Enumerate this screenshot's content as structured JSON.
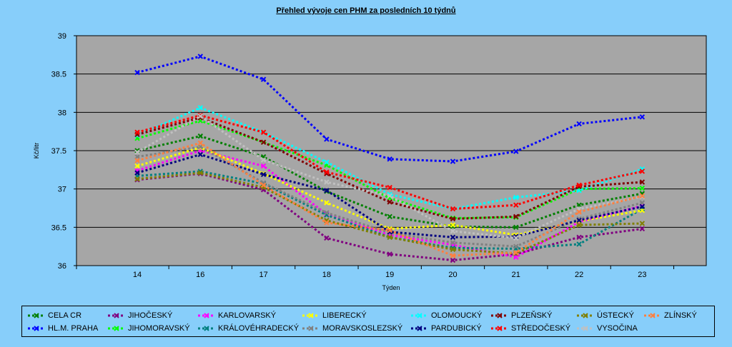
{
  "chart_data": {
    "type": "line",
    "title": "Přehled vývoje cen PHM za posledních 10 týdnů",
    "xlabel": "Týden",
    "ylabel": "Kč/litr",
    "categories": [
      "14",
      "16",
      "17",
      "18",
      "19",
      "20",
      "21",
      "22",
      "23"
    ],
    "ylim": [
      36,
      39
    ],
    "yticks": [
      "36",
      "36.5",
      "37",
      "37.5",
      "38",
      "38.5",
      "39"
    ],
    "grid": true,
    "legend_position": "bottom",
    "series": [
      {
        "name": "CELA CR",
        "color": "#008000",
        "values": [
          37.5,
          37.69,
          37.42,
          36.97,
          36.64,
          36.51,
          36.5,
          36.79,
          36.94
        ]
      },
      {
        "name": "HL.M. PRAHA",
        "color": "#0000FF",
        "values": [
          38.52,
          38.73,
          38.43,
          37.65,
          37.39,
          37.36,
          37.49,
          37.85,
          37.94
        ]
      },
      {
        "name": "JIHOČESKÝ",
        "color": "#800080",
        "values": [
          37.12,
          37.2,
          36.99,
          36.36,
          36.15,
          36.07,
          36.15,
          36.37,
          36.48
        ]
      },
      {
        "name": "JIHOMORAVSKÝ",
        "color": "#00FF00",
        "values": [
          37.66,
          37.89,
          37.61,
          37.31,
          36.88,
          36.62,
          36.63,
          37.0,
          37.01
        ]
      },
      {
        "name": "KARLOVARSKÝ",
        "color": "#FF00FF",
        "values": [
          37.24,
          37.5,
          37.3,
          36.67,
          36.4,
          36.27,
          36.11,
          36.57,
          36.78
        ]
      },
      {
        "name": "KRÁLOVÉHRADECKÝ",
        "color": "#008080",
        "values": [
          37.17,
          37.23,
          37.07,
          36.66,
          36.37,
          36.23,
          36.22,
          36.28,
          36.74
        ]
      },
      {
        "name": "LIBERECKÝ",
        "color": "#FFFF00",
        "values": [
          37.3,
          37.54,
          37.2,
          36.82,
          36.48,
          36.53,
          36.4,
          36.58,
          36.72
        ]
      },
      {
        "name": "MORAVSKOSLEZSKÝ",
        "color": "#808080",
        "values": [
          37.42,
          37.55,
          37.08,
          36.69,
          36.43,
          36.3,
          36.25,
          36.61,
          36.82
        ]
      },
      {
        "name": "OLOMOUCKÝ",
        "color": "#00FFFF",
        "values": [
          37.7,
          38.06,
          37.74,
          37.35,
          36.93,
          36.74,
          36.89,
          36.98,
          37.26
        ]
      },
      {
        "name": "PARDUBICKÝ",
        "color": "#000080",
        "values": [
          37.21,
          37.45,
          37.19,
          36.98,
          36.44,
          36.37,
          36.38,
          36.59,
          36.77
        ]
      },
      {
        "name": "PLZEŇSKÝ",
        "color": "#800000",
        "values": [
          37.71,
          37.93,
          37.61,
          37.2,
          36.83,
          36.61,
          36.64,
          37.03,
          37.09
        ]
      },
      {
        "name": "STŘEDOČESKÝ",
        "color": "#FF0000",
        "values": [
          37.74,
          37.96,
          37.74,
          37.22,
          37.02,
          36.74,
          36.79,
          37.05,
          37.23
        ]
      },
      {
        "name": "ÚSTECKÝ",
        "color": "#808000",
        "values": [
          37.13,
          37.21,
          37.02,
          36.59,
          36.37,
          36.21,
          36.16,
          36.53,
          36.55
        ]
      },
      {
        "name": "VYSOČINA",
        "color": "#C0C0C0",
        "values": [
          37.48,
          37.95,
          37.38,
          37.09,
          36.91,
          36.45,
          36.36,
          36.74,
          36.9
        ]
      },
      {
        "name": "ZLÍNSKÝ",
        "color": "#FF8040",
        "values": [
          37.37,
          37.6,
          37.05,
          36.56,
          36.46,
          36.13,
          36.17,
          36.7,
          36.91
        ]
      }
    ]
  }
}
